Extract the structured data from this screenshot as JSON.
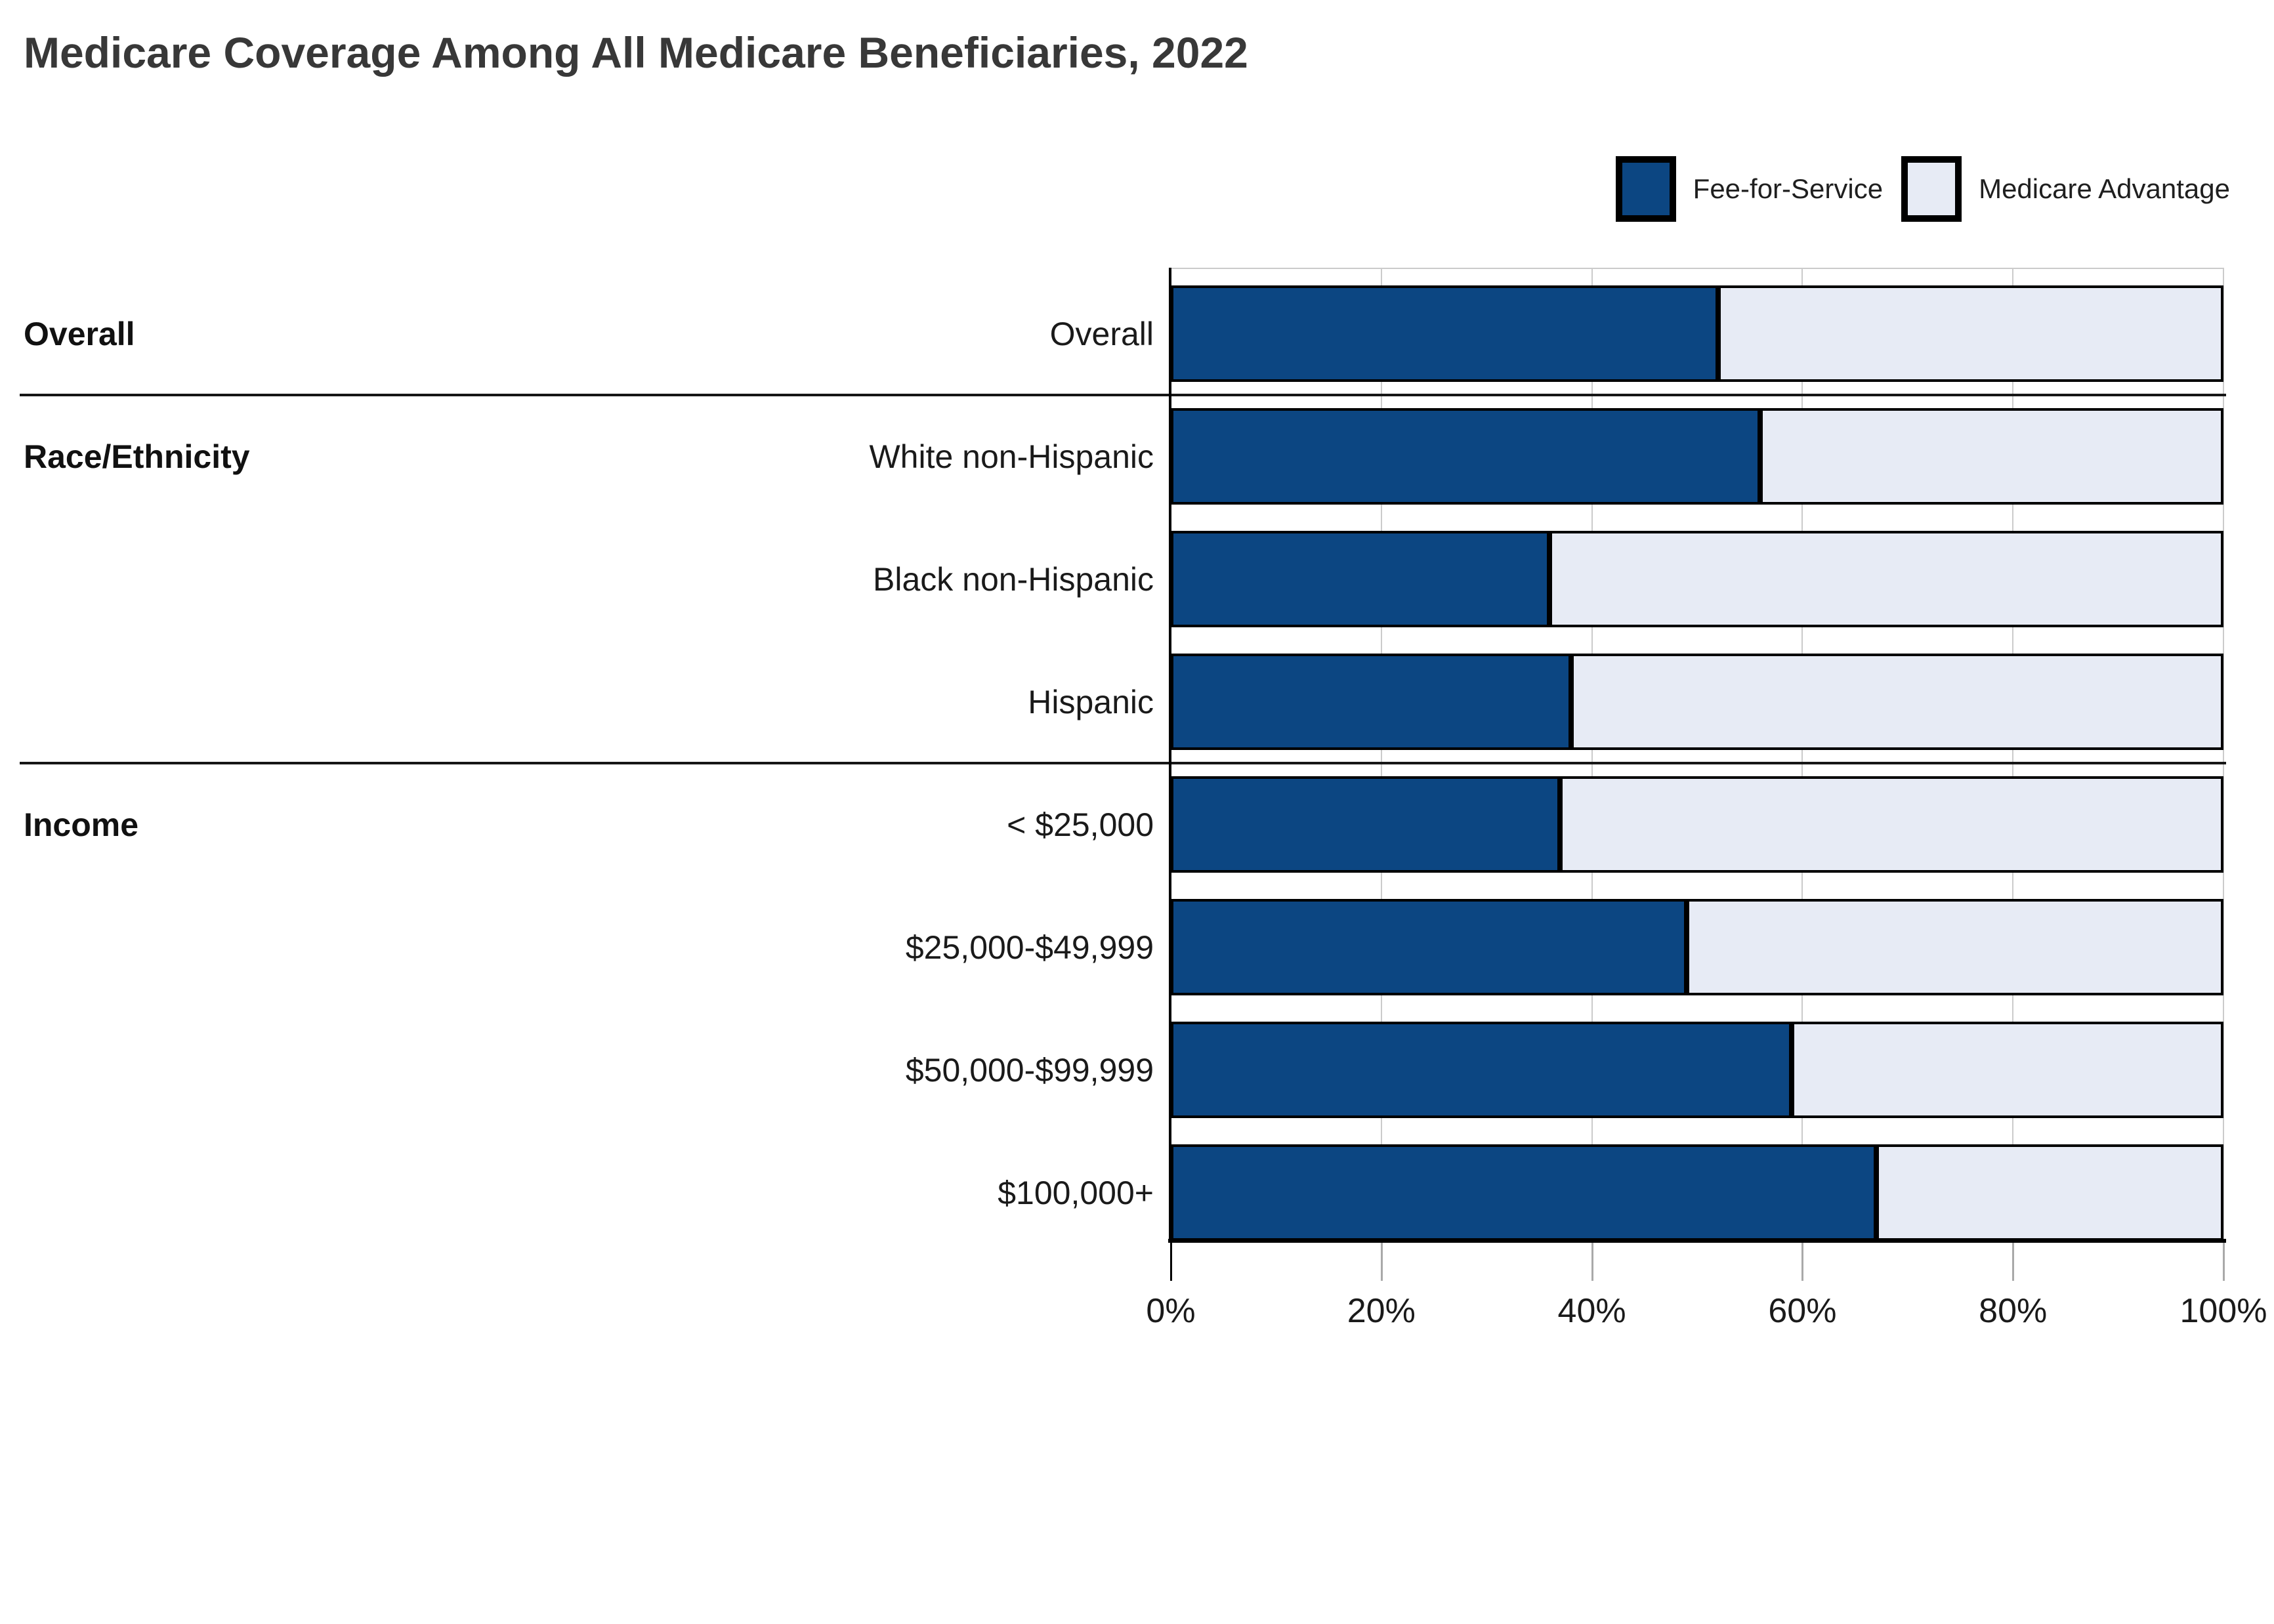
{
  "title": "Medicare Coverage Among All Medicare Beneficiaries, 2022",
  "legend": {
    "items": [
      {
        "label": "Fee-for-Service",
        "color": "#0C4682"
      },
      {
        "label": "Medicare Advantage",
        "color": "#E7EBF5"
      }
    ]
  },
  "colors": {
    "fee_for_service": "#0C4682",
    "medicare_advantage": "#E7EBF5",
    "bar_border": "#000000",
    "gridline": "#cbcbcb",
    "axis": "#000000",
    "divider": "#161616",
    "title_text": "#383838",
    "label_text": "#1a1a1a"
  },
  "chart_data": {
    "type": "bar",
    "orientation": "horizontal",
    "stacked": true,
    "title": "Medicare Coverage Among All Medicare Beneficiaries, 2022",
    "xlabel": "",
    "ylabel": "",
    "xlim": [
      0,
      100
    ],
    "x_ticks": [
      "0%",
      "20%",
      "40%",
      "60%",
      "80%",
      "100%"
    ],
    "x_tick_values": [
      0,
      20,
      40,
      60,
      80,
      100
    ],
    "grid": true,
    "legend_position": "top-right",
    "categories": [
      "Overall",
      "White non-Hispanic",
      "Black non-Hispanic",
      "Hispanic",
      "< $25,000",
      "$25,000-$49,999",
      "$50,000-$99,999",
      "$100,000+"
    ],
    "series": [
      {
        "name": "Fee-for-Service",
        "color": "#0C4682",
        "values": [
          52,
          56,
          36,
          38,
          37,
          49,
          59,
          67
        ]
      },
      {
        "name": "Medicare Advantage",
        "color": "#E7EBF5",
        "values": [
          48,
          44,
          64,
          62,
          63,
          51,
          41,
          33
        ]
      }
    ],
    "sections": [
      {
        "label": "Overall",
        "first_row": 0,
        "rows": [
          "Overall"
        ]
      },
      {
        "label": "Race/Ethnicity",
        "first_row": 1,
        "rows": [
          "White non-Hispanic",
          "Black non-Hispanic",
          "Hispanic"
        ]
      },
      {
        "label": "Income",
        "first_row": 4,
        "rows": [
          "< $25,000",
          "$25,000-$49,999",
          "$50,000-$99,999",
          "$100,000+"
        ]
      }
    ]
  }
}
